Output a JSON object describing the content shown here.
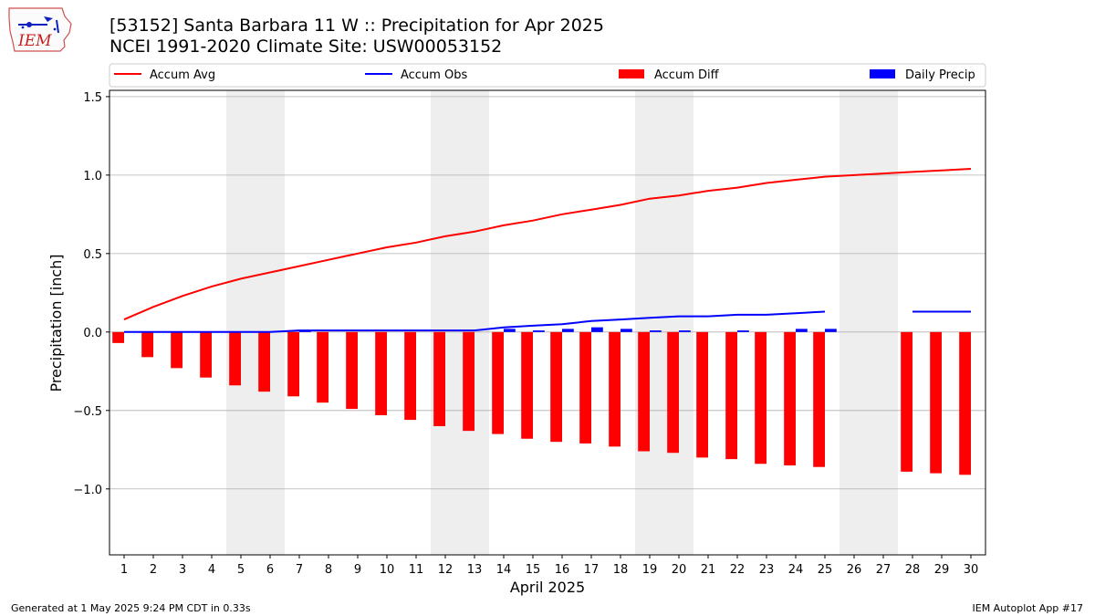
{
  "header": {
    "title_line1": "[53152] Santa Barbara 11 W :: Precipitation for Apr 2025",
    "title_line2": "NCEI 1991-2020 Climate Site: USW00053152",
    "logo_text": "IEM",
    "logo_icon": "iowa-state-weather-logo"
  },
  "footer": {
    "generated": "Generated at 1 May 2025 9:24 PM CDT in 0.33s",
    "app": "IEM Autoplot App #17"
  },
  "chart_data": {
    "type": "bar",
    "xlabel": "April 2025",
    "ylabel": "Precipitation [inch]",
    "ylim": [
      -1.42,
      1.54
    ],
    "yticks": [
      -1.0,
      -0.5,
      0.0,
      0.5,
      1.0,
      1.5
    ],
    "ytick_labels": [
      "−1.0",
      "−0.5",
      "0.0",
      "0.5",
      "1.0",
      "1.5"
    ],
    "xlim": [
      0.5,
      30.5
    ],
    "days": [
      1,
      2,
      3,
      4,
      5,
      6,
      7,
      8,
      9,
      10,
      11,
      12,
      13,
      14,
      15,
      16,
      17,
      18,
      19,
      20,
      21,
      22,
      23,
      24,
      25,
      26,
      27,
      28,
      29,
      30
    ],
    "weekend_days": [
      5,
      6,
      12,
      13,
      19,
      20,
      26,
      27
    ],
    "grid": "horizontal",
    "legend_placement": "top",
    "colors": {
      "avg": "#ff0000",
      "obs": "#0000ff",
      "diff": "#ff0000",
      "daily": "#0000ff",
      "weekend": "#eeeeee",
      "grid": "#b0b0b0"
    },
    "legend": [
      {
        "label": "Accum Avg",
        "kind": "line",
        "color": "#ff0000"
      },
      {
        "label": "Accum Obs",
        "kind": "line",
        "color": "#0000ff"
      },
      {
        "label": "Accum Diff",
        "kind": "patch",
        "color": "#ff0000"
      },
      {
        "label": "Daily Precip",
        "kind": "patch",
        "color": "#0000ff"
      }
    ],
    "accum_avg": [
      0.08,
      0.16,
      0.23,
      0.29,
      0.34,
      0.38,
      0.42,
      0.46,
      0.5,
      0.54,
      0.57,
      0.61,
      0.64,
      0.68,
      0.71,
      0.75,
      0.78,
      0.81,
      0.85,
      0.87,
      0.9,
      0.92,
      0.95,
      0.97,
      0.99,
      1.0,
      1.01,
      1.02,
      1.03,
      1.04
    ],
    "accum_obs": [
      0.0,
      0.0,
      0.0,
      0.0,
      0.0,
      0.0,
      0.01,
      0.01,
      0.01,
      0.01,
      0.01,
      0.01,
      0.01,
      0.03,
      0.04,
      0.05,
      0.07,
      0.08,
      0.09,
      0.1,
      0.1,
      0.11,
      0.11,
      0.12,
      0.13,
      null,
      null,
      0.13,
      0.13,
      0.13
    ],
    "accum_diff": [
      -0.07,
      -0.16,
      -0.23,
      -0.29,
      -0.34,
      -0.38,
      -0.41,
      -0.45,
      -0.49,
      -0.53,
      -0.56,
      -0.6,
      -0.63,
      -0.65,
      -0.68,
      -0.7,
      -0.71,
      -0.73,
      -0.76,
      -0.77,
      -0.8,
      -0.81,
      -0.84,
      -0.85,
      -0.86,
      null,
      null,
      -0.89,
      -0.9,
      -0.91
    ],
    "daily_precip": [
      0.0,
      0.0,
      0.0,
      0.0,
      0.0,
      0.0,
      0.01,
      0.0,
      0.0,
      0.0,
      0.0,
      0.0,
      0.0,
      0.02,
      0.01,
      0.02,
      0.03,
      0.02,
      0.01,
      0.01,
      0.0,
      0.01,
      0.0,
      0.02,
      0.02,
      null,
      null,
      0.0,
      0.0,
      0.0
    ]
  }
}
